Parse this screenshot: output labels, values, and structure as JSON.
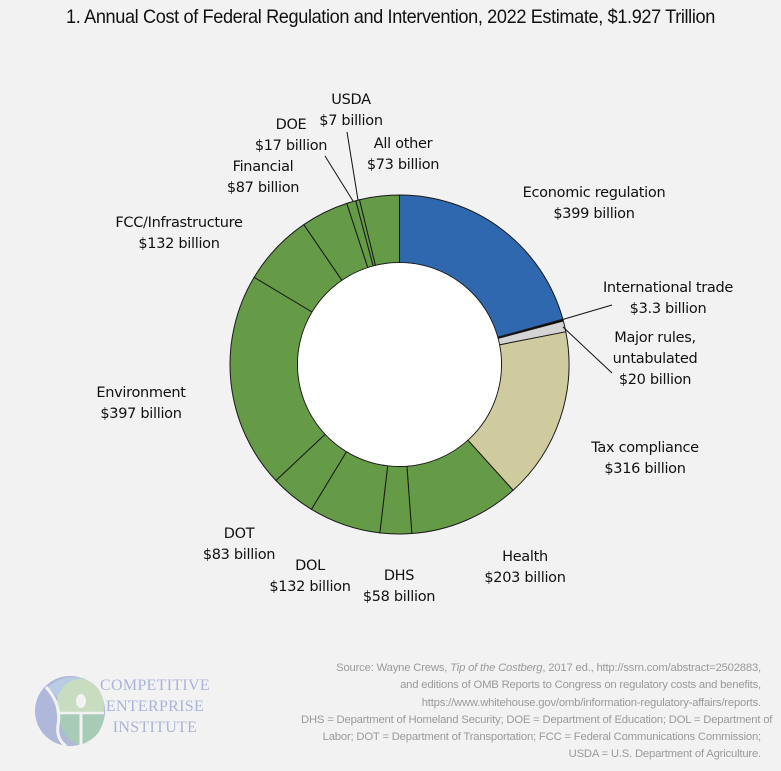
{
  "chart_data": {
    "type": "pie",
    "subtype": "donut",
    "title": "1. Annual Cost of Federal Regulation and Intervention, 2022 Estimate, $1.927 Trillion",
    "units": "billion USD",
    "total_label": "$1.927 Trillion",
    "start_angle": "12 o'clock",
    "direction": "clockwise",
    "slices": [
      {
        "name": "Economic regulation",
        "value": 399,
        "label": "$399 billion",
        "color": "#3068b0"
      },
      {
        "name": "International trade",
        "value": 3.3,
        "label": "$3.3 billion",
        "color": "#000000"
      },
      {
        "name": "Major rules, untabulated",
        "value": 20,
        "label": "$20 billion",
        "color": "#d4d4d4"
      },
      {
        "name": "Tax compliance",
        "value": 316,
        "label": "$316 billion",
        "color": "#cfcb9e"
      },
      {
        "name": "Health",
        "value": 203,
        "label": "$203 billion",
        "color": "#659b47"
      },
      {
        "name": "DHS",
        "value": 58,
        "label": "$58 billion",
        "color": "#659b47"
      },
      {
        "name": "DOL",
        "value": 132,
        "label": "$132 billion",
        "color": "#659b47"
      },
      {
        "name": "DOT",
        "value": 83,
        "label": "$83 billion",
        "color": "#659b47"
      },
      {
        "name": "Environment",
        "value": 397,
        "label": "$397 billion",
        "color": "#659b47"
      },
      {
        "name": "FCC/Infrastructure",
        "value": 132,
        "label": "$132 billion",
        "color": "#659b47"
      },
      {
        "name": "Financial",
        "value": 87,
        "label": "$87 billion",
        "color": "#659b47"
      },
      {
        "name": "DOE",
        "value": 17,
        "label": "$17 billion",
        "color": "#659b47"
      },
      {
        "name": "USDA",
        "value": 7,
        "label": "$7 billion",
        "color": "#659b47"
      },
      {
        "name": "All other",
        "value": 73,
        "label": "$73 billion",
        "color": "#659b47"
      }
    ],
    "labels_display": [
      {
        "line1": "Economic regulation",
        "line2": "$399 billion"
      },
      {
        "line1": "International trade",
        "line2": "$3.3 billion"
      },
      {
        "line1": "Major rules,",
        "line2": "untabulated",
        "line3": "$20 billion"
      },
      {
        "line1": "Tax compliance",
        "line2": "$316 billion"
      },
      {
        "line1": "Health",
        "line2": "$203 billion"
      },
      {
        "line1": "DHS",
        "line2": "$58 billion"
      },
      {
        "line1": "DOL",
        "line2": "$132 billion"
      },
      {
        "line1": "DOT",
        "line2": "$83 billion"
      },
      {
        "line1": "Environment",
        "line2": "$397 billion"
      },
      {
        "line1": "FCC/Infrastructure",
        "line2": "$132 billion"
      },
      {
        "line1": "Financial",
        "line2": "$87 billion"
      },
      {
        "line1": "DOE",
        "line2": "$17 billion"
      },
      {
        "line1": "USDA",
        "line2": "$7 billion"
      },
      {
        "line1": "All other",
        "line2": "$73 billion"
      }
    ]
  },
  "logo": {
    "line1": "COMPETITIVE",
    "line2": "ENTERPRISE",
    "line3": "INSTITUTE",
    "colors": {
      "text": "#a9b4d8",
      "left": "#b0b8da",
      "top": "#b9cce2",
      "center": "#c8dcc0",
      "bottom": "#a8cbb8"
    }
  },
  "source": {
    "prefix": "Source:  Wayne Crews, ",
    "book": "Tip of the Costberg",
    "line1_rest": ", 2017 ed., http://ssrn.com/abstract=2502883,",
    "line2": "and editions of OMB Reports to Congress on regulatory costs and benefits,",
    "line3": "https://www.whitehouse.gov/omb/information-regulatory-affairs/reports.",
    "line4": "DHS = Department of Homeland Security; DOE = Department of Education; DOL = Department of",
    "line5": "Labor; DOT = Department of Transportation; FCC = Federal Communications Commission;",
    "line6": "USDA = U.S. Department of Agriculture."
  }
}
